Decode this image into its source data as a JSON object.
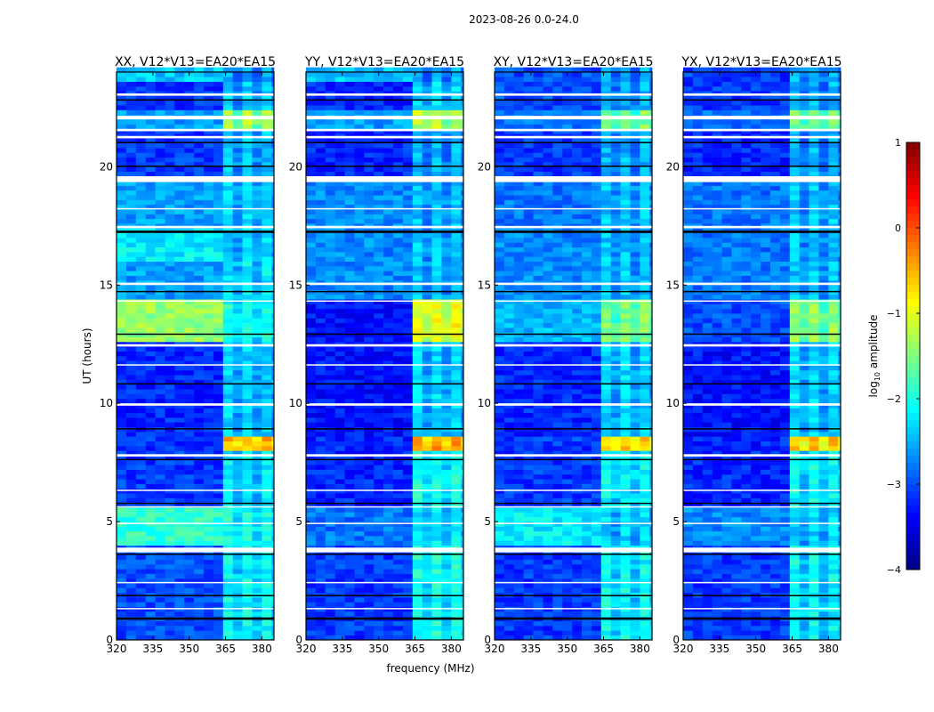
{
  "chart_data": {
    "type": "heatmap",
    "suptitle": "2023-08-26 0.0-24.0",
    "xlabel": "frequency (MHz)",
    "ylabel": "UT (hours)",
    "xlim": [
      320,
      385
    ],
    "ylim": [
      0,
      24
    ],
    "xticks": [
      "320",
      "335",
      "350",
      "365",
      "380"
    ],
    "yticks": [
      "0",
      "5",
      "10",
      "15",
      "20"
    ],
    "colorbar": {
      "label": "log10 amplitude",
      "label_main": "log",
      "label_sub": "10",
      "label_end": " amplitude",
      "range": [
        -4,
        1
      ],
      "ticks": [
        "1",
        "0",
        "−1",
        "−2",
        "−3",
        "−4"
      ],
      "colormap": "jet"
    },
    "rfi_band_mhz": [
      362,
      382
    ],
    "flagged_white_hours": [
      [
        23.0,
        23.1
      ],
      [
        22.0,
        22.15
      ],
      [
        21.5,
        21.6
      ],
      [
        21.2,
        21.3
      ],
      [
        19.35,
        19.6
      ],
      [
        18.2,
        18.25
      ],
      [
        17.4,
        17.5
      ],
      [
        15.0,
        15.1
      ],
      [
        14.3,
        14.35
      ],
      [
        12.4,
        12.5
      ],
      [
        11.6,
        11.65
      ],
      [
        9.9,
        10.0
      ],
      [
        7.75,
        7.85
      ],
      [
        6.3,
        6.35
      ],
      [
        5.6,
        5.65
      ],
      [
        4.9,
        4.95
      ],
      [
        3.7,
        3.9
      ],
      [
        2.4,
        2.45
      ],
      [
        1.3,
        1.35
      ]
    ],
    "flagged_black_hours": [
      [
        22.8,
        22.85
      ],
      [
        21.0,
        21.05
      ],
      [
        20.0,
        20.05
      ],
      [
        17.2,
        17.3
      ],
      [
        14.7,
        14.75
      ],
      [
        12.9,
        12.95
      ],
      [
        10.8,
        10.85
      ],
      [
        8.9,
        8.95
      ],
      [
        7.6,
        7.65
      ],
      [
        5.75,
        5.8
      ],
      [
        3.6,
        3.65
      ],
      [
        1.85,
        1.9
      ],
      [
        0.85,
        0.95
      ]
    ],
    "panels": [
      {
        "title": "XX, V12*V13=EA20*EA15",
        "segments": [
          [
            0,
            4,
            -3.0,
            -2.1
          ],
          [
            4,
            5.6,
            -1.9,
            -2.0
          ],
          [
            5.6,
            8,
            -3.1,
            -2.2
          ],
          [
            8,
            8.6,
            -3.1,
            -0.5
          ],
          [
            8.6,
            12.4,
            -3.2,
            -2.3
          ],
          [
            12.4,
            14.3,
            -1.4,
            -2.0
          ],
          [
            14.3,
            15.8,
            -2.6,
            -2.2
          ],
          [
            15.8,
            17.2,
            -2.2,
            -2.3
          ],
          [
            17.2,
            19.4,
            -2.6,
            -2.3
          ],
          [
            19.4,
            21.4,
            -3.1,
            -2.4
          ],
          [
            21.4,
            22.2,
            -2.6,
            -1.3
          ],
          [
            22.2,
            23.4,
            -3.1,
            -2.4
          ],
          [
            23.4,
            24,
            -2.4,
            -2.5
          ]
        ]
      },
      {
        "title": "YY, V12*V13=EA20*EA15",
        "segments": [
          [
            0,
            4,
            -3.1,
            -2.0
          ],
          [
            4,
            5.6,
            -2.8,
            -2.2
          ],
          [
            5.6,
            8,
            -3.2,
            -2.0
          ],
          [
            8,
            8.6,
            -3.2,
            -0.4
          ],
          [
            8.6,
            12.4,
            -3.3,
            -2.3
          ],
          [
            12.4,
            14.3,
            -3.3,
            -0.9
          ],
          [
            14.3,
            17.2,
            -2.7,
            -2.4
          ],
          [
            17.2,
            19.4,
            -2.7,
            -2.4
          ],
          [
            19.4,
            21.4,
            -3.2,
            -2.5
          ],
          [
            21.4,
            22.2,
            -2.6,
            -1.2
          ],
          [
            22.2,
            23.4,
            -3.2,
            -2.3
          ],
          [
            23.4,
            24,
            -2.4,
            -2.5
          ]
        ]
      },
      {
        "title": "XY, V12*V13=EA20*EA15",
        "segments": [
          [
            0,
            4,
            -3.1,
            -2.1
          ],
          [
            4,
            5.6,
            -2.2,
            -2.3
          ],
          [
            5.6,
            8,
            -3.1,
            -2.1
          ],
          [
            8,
            8.6,
            -3.1,
            -0.6
          ],
          [
            8.6,
            12.4,
            -3.2,
            -2.3
          ],
          [
            12.4,
            14.3,
            -2.5,
            -1.5
          ],
          [
            14.3,
            17.2,
            -2.7,
            -2.4
          ],
          [
            17.2,
            19.4,
            -2.8,
            -2.4
          ],
          [
            19.4,
            21.4,
            -3.1,
            -2.5
          ],
          [
            21.4,
            22.2,
            -2.8,
            -1.5
          ],
          [
            22.2,
            24,
            -3.0,
            -2.5
          ]
        ]
      },
      {
        "title": "YX, V12*V13=EA20*EA15",
        "segments": [
          [
            0,
            4,
            -3.1,
            -2.1
          ],
          [
            4,
            5.6,
            -2.7,
            -2.3
          ],
          [
            5.6,
            8,
            -3.2,
            -2.1
          ],
          [
            8,
            8.6,
            -3.2,
            -0.6
          ],
          [
            8.6,
            12.4,
            -3.3,
            -2.3
          ],
          [
            12.4,
            14.3,
            -3.0,
            -1.4
          ],
          [
            14.3,
            17.2,
            -2.8,
            -2.4
          ],
          [
            17.2,
            19.4,
            -2.8,
            -2.4
          ],
          [
            19.4,
            21.4,
            -3.2,
            -2.5
          ],
          [
            21.4,
            22.2,
            -2.8,
            -1.5
          ],
          [
            22.2,
            24,
            -3.1,
            -2.5
          ]
        ]
      }
    ]
  }
}
